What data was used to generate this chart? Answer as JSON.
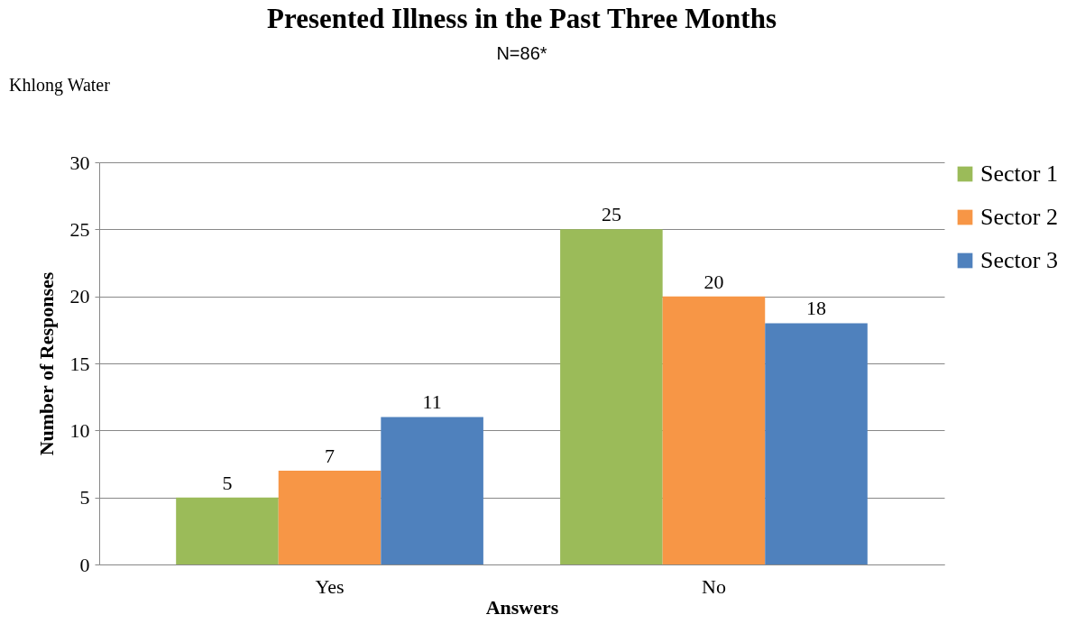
{
  "chart_data": {
    "type": "bar",
    "title": "Presented Illness in the Past Three Months",
    "subtitle": "N=86*",
    "xlabel": "Answers",
    "ylabel": "Number of Responses",
    "annotations": [
      "Khlong Water"
    ],
    "categories": [
      "Yes",
      "No"
    ],
    "series": [
      {
        "name": "Sector 1",
        "color": "#9bbb59",
        "values": [
          5,
          25
        ]
      },
      {
        "name": "Sector 2",
        "color": "#f79646",
        "values": [
          7,
          20
        ]
      },
      {
        "name": "Sector 3",
        "color": "#4f81bd",
        "values": [
          11,
          18
        ]
      }
    ],
    "ylim": [
      0,
      30
    ],
    "yticks": [
      0,
      5,
      10,
      15,
      20,
      25,
      30
    ],
    "grid": "y",
    "legend": "right",
    "data_labels": true
  }
}
